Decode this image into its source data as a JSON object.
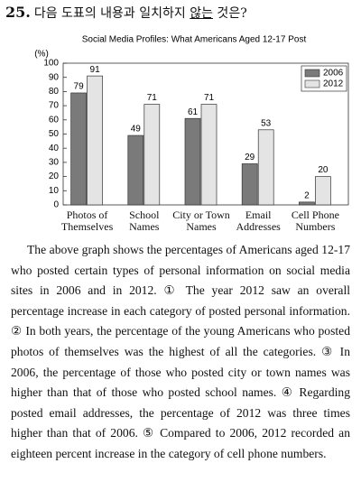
{
  "question": {
    "number": "25.",
    "prompt": [
      "다음 도표의 내용과 일치하지 ",
      "않는",
      " 것은?"
    ]
  },
  "chart_data": {
    "type": "bar",
    "title": "Social Media Profiles: What Americans Aged 12-17 Post",
    "y_unit": "(%)",
    "categories": [
      "Photos of\nThemselves",
      "School\nNames",
      "City or Town\nNames",
      "Email\nAddresses",
      "Cell Phone\nNumbers"
    ],
    "series": [
      {
        "name": "2006",
        "color": "#7a7a7a",
        "values": [
          79,
          49,
          61,
          29,
          2
        ]
      },
      {
        "name": "2012",
        "color": "#e4e4e4",
        "values": [
          91,
          71,
          71,
          53,
          20
        ]
      }
    ],
    "ylim": [
      0,
      100
    ],
    "yticks": [
      0,
      10,
      20,
      30,
      40,
      50,
      60,
      70,
      80,
      90,
      100
    ],
    "legend": "top-right",
    "show_value_labels": true
  },
  "passage": {
    "intro": "The above graph shows the percentages of Americans aged 12-17 who posted certain types of personal information on social media sites in 2006 and in 2012.",
    "options": [
      {
        "marker": "①",
        "text": "The year 2012 saw an overall percentage increase in each category of posted personal information."
      },
      {
        "marker": "②",
        "text": "In both years, the percentage of the young Americans who posted photos of themselves was the highest of all the categories."
      },
      {
        "marker": "③",
        "text": "In 2006, the percentage of those who posted city or town names was higher than that of those who posted school names."
      },
      {
        "marker": "④",
        "text": "Regarding posted email addresses, the percentage of 2012 was three times higher than that of 2006."
      },
      {
        "marker": "⑤",
        "text": "Compared to 2006, 2012 recorded an eighteen percent increase in the category of cell phone numbers."
      }
    ]
  }
}
